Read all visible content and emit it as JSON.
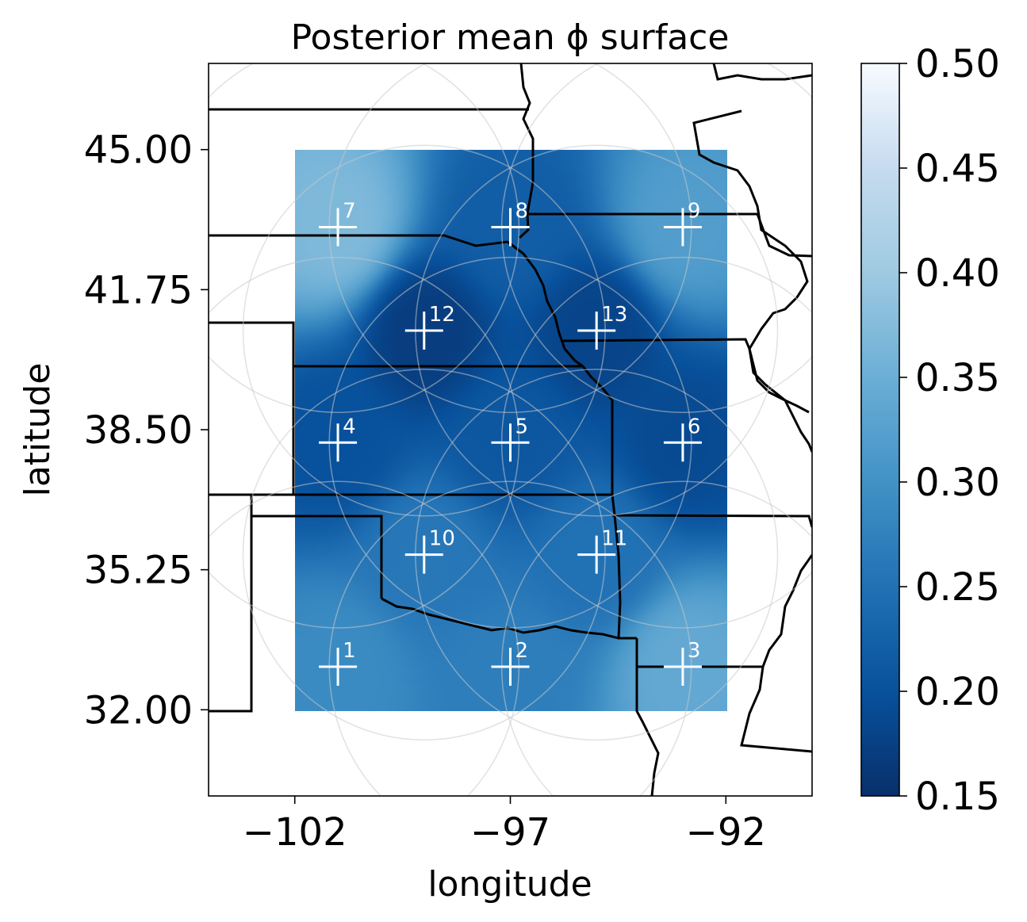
{
  "chart_data": {
    "type": "heatmap",
    "title": "Posterior mean ϕ surface",
    "xlabel": "longitude",
    "ylabel": "latitude",
    "xlim": [
      -104,
      -90
    ],
    "ylim": [
      30,
      47
    ],
    "xticks": [
      -102,
      -97,
      -92
    ],
    "xtick_labels": [
      "−102",
      "−97",
      "−92"
    ],
    "yticks": [
      32.0,
      35.25,
      38.5,
      41.75,
      45.0
    ],
    "ytick_labels": [
      "32.00",
      "35.25",
      "38.50",
      "41.75",
      "45.00"
    ],
    "surface_extent": {
      "lon": [
        -102,
        -92
      ],
      "lat": [
        32,
        45
      ]
    },
    "colormap": "Blues_r",
    "colorbar": {
      "min": 0.15,
      "max": 0.5,
      "ticks": [
        0.15,
        0.2,
        0.25,
        0.3,
        0.35,
        0.4,
        0.45,
        0.5
      ],
      "tick_labels": [
        "0.15",
        "0.20",
        "0.25",
        "0.30",
        "0.35",
        "0.40",
        "0.45",
        "0.50"
      ]
    },
    "knots": [
      {
        "id": "1",
        "lon": -101,
        "lat": 33
      },
      {
        "id": "2",
        "lon": -97,
        "lat": 33
      },
      {
        "id": "3",
        "lon": -93,
        "lat": 33
      },
      {
        "id": "4",
        "lon": -101,
        "lat": 38.2
      },
      {
        "id": "5",
        "lon": -97,
        "lat": 38.2
      },
      {
        "id": "6",
        "lon": -93,
        "lat": 38.2
      },
      {
        "id": "7",
        "lon": -101,
        "lat": 43.2
      },
      {
        "id": "8",
        "lon": -97,
        "lat": 43.2
      },
      {
        "id": "9",
        "lon": -93,
        "lat": 43.2
      },
      {
        "id": "10",
        "lon": -99,
        "lat": 35.6
      },
      {
        "id": "11",
        "lon": -95,
        "lat": 35.6
      },
      {
        "id": "12",
        "lon": -99,
        "lat": 40.8
      },
      {
        "id": "13",
        "lon": -95,
        "lat": 40.8
      }
    ],
    "knot_phi": {
      "1": 0.29,
      "2": 0.27,
      "3": 0.34,
      "4": 0.2,
      "5": 0.21,
      "6": 0.19,
      "7": 0.37,
      "8": 0.22,
      "9": 0.32,
      "10": 0.26,
      "11": 0.25,
      "12": 0.17,
      "13": 0.18
    },
    "grid": false,
    "legend": "none"
  }
}
